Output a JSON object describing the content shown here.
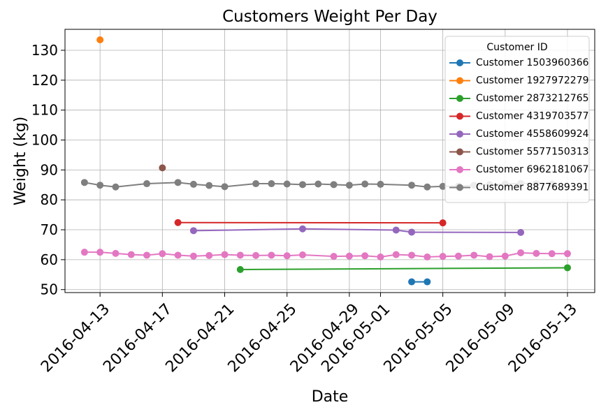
{
  "chart_data": {
    "type": "line",
    "title": "Customers Weight Per Day",
    "xlabel": "Date",
    "ylabel": "Weight (kg)",
    "grid": true,
    "legend": {
      "title": "Customer ID",
      "placement": "top-right"
    },
    "xlim": [
      "2016-04-10T18:00",
      "2016-05-14T18:00"
    ],
    "ylim": [
      49,
      137
    ],
    "x_ticks": [
      "2016-04-13",
      "2016-04-17",
      "2016-04-21",
      "2016-04-25",
      "2016-04-29",
      "2016-05-01",
      "2016-05-05",
      "2016-05-09",
      "2016-05-13"
    ],
    "y_ticks": [
      50,
      60,
      70,
      80,
      90,
      100,
      110,
      120,
      130
    ],
    "series": [
      {
        "name": "Customer 1503960366",
        "color": "#1f77b4",
        "points": [
          [
            "2016-05-03",
            52.6
          ],
          [
            "2016-05-04",
            52.6
          ]
        ]
      },
      {
        "name": "Customer 1927972279",
        "color": "#ff7f0e",
        "points": [
          [
            "2016-04-13",
            133.5
          ]
        ]
      },
      {
        "name": "Customer 2873212765",
        "color": "#2ca02c",
        "points": [
          [
            "2016-04-22",
            56.7
          ],
          [
            "2016-05-13",
            57.3
          ]
        ]
      },
      {
        "name": "Customer 4319703577",
        "color": "#d62728",
        "points": [
          [
            "2016-04-18",
            72.4
          ],
          [
            "2016-05-05",
            72.3
          ]
        ]
      },
      {
        "name": "Customer 4558609924",
        "color": "#9467bd",
        "points": [
          [
            "2016-04-19",
            69.7
          ],
          [
            "2016-04-26",
            70.3
          ],
          [
            "2016-05-02",
            69.9
          ],
          [
            "2016-05-03",
            69.2
          ],
          [
            "2016-05-10",
            69.1
          ]
        ]
      },
      {
        "name": "Customer 5577150313",
        "color": "#8c564b",
        "points": [
          [
            "2016-04-17",
            90.7
          ]
        ]
      },
      {
        "name": "Customer 6962181067",
        "color": "#e377c2",
        "points": [
          [
            "2016-04-12",
            62.5
          ],
          [
            "2016-04-13",
            62.5
          ],
          [
            "2016-04-14",
            62.1
          ],
          [
            "2016-04-15",
            61.7
          ],
          [
            "2016-04-16",
            61.5
          ],
          [
            "2016-04-17",
            62.0
          ],
          [
            "2016-04-18",
            61.5
          ],
          [
            "2016-04-19",
            61.2
          ],
          [
            "2016-04-20",
            61.4
          ],
          [
            "2016-04-21",
            61.7
          ],
          [
            "2016-04-22",
            61.5
          ],
          [
            "2016-04-23",
            61.4
          ],
          [
            "2016-04-24",
            61.5
          ],
          [
            "2016-04-25",
            61.3
          ],
          [
            "2016-04-26",
            61.6
          ],
          [
            "2016-04-28",
            61.1
          ],
          [
            "2016-04-29",
            61.2
          ],
          [
            "2016-04-30",
            61.3
          ],
          [
            "2016-05-01",
            60.9
          ],
          [
            "2016-05-02",
            61.7
          ],
          [
            "2016-05-03",
            61.5
          ],
          [
            "2016-05-04",
            60.9
          ],
          [
            "2016-05-05",
            61.1
          ],
          [
            "2016-05-06",
            61.2
          ],
          [
            "2016-05-07",
            61.5
          ],
          [
            "2016-05-08",
            61.0
          ],
          [
            "2016-05-09",
            61.2
          ],
          [
            "2016-05-10",
            62.3
          ],
          [
            "2016-05-11",
            62.1
          ],
          [
            "2016-05-12",
            62.0
          ],
          [
            "2016-05-13",
            62.0
          ]
        ]
      },
      {
        "name": "Customer 8877689391",
        "color": "#7f7f7f",
        "points": [
          [
            "2016-04-12",
            85.8
          ],
          [
            "2016-04-13",
            84.9
          ],
          [
            "2016-04-14",
            84.3
          ],
          [
            "2016-04-16",
            85.4
          ],
          [
            "2016-04-18",
            85.8
          ],
          [
            "2016-04-19",
            85.2
          ],
          [
            "2016-04-20",
            84.8
          ],
          [
            "2016-04-21",
            84.4
          ],
          [
            "2016-04-23",
            85.4
          ],
          [
            "2016-04-24",
            85.4
          ],
          [
            "2016-04-25",
            85.3
          ],
          [
            "2016-04-26",
            85.1
          ],
          [
            "2016-04-27",
            85.3
          ],
          [
            "2016-04-28",
            85.1
          ],
          [
            "2016-04-29",
            84.9
          ],
          [
            "2016-04-30",
            85.3
          ],
          [
            "2016-05-01",
            85.2
          ],
          [
            "2016-05-03",
            84.9
          ],
          [
            "2016-05-04",
            84.3
          ],
          [
            "2016-05-05",
            84.5
          ],
          [
            "2016-05-06",
            84.6
          ],
          [
            "2016-05-07",
            84.9
          ],
          [
            "2016-05-08",
            85.1
          ],
          [
            "2016-05-09",
            85.3
          ],
          [
            "2016-05-10",
            85.5
          ],
          [
            "2016-05-11",
            85.4
          ],
          [
            "2016-05-12",
            85.3
          ]
        ]
      }
    ]
  }
}
